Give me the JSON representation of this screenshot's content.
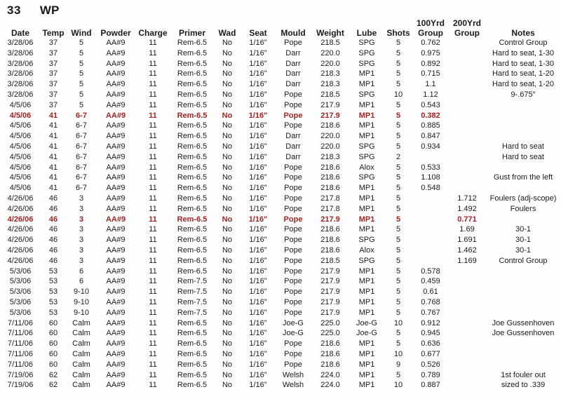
{
  "header": {
    "number": "33",
    "code": "WP"
  },
  "colors": {
    "text": "#1b1b1b",
    "highlight_red": "#a12424",
    "background": "#fdfdfd"
  },
  "table": {
    "columns": [
      {
        "key": "date",
        "label": "Date"
      },
      {
        "key": "temp",
        "label": "Temp"
      },
      {
        "key": "wind",
        "label": "Wind"
      },
      {
        "key": "powder",
        "label": "Powder"
      },
      {
        "key": "charge",
        "label": "Charge"
      },
      {
        "key": "primer",
        "label": "Primer"
      },
      {
        "key": "wad",
        "label": "Wad"
      },
      {
        "key": "seat",
        "label": "Seat"
      },
      {
        "key": "mould",
        "label": "Mould"
      },
      {
        "key": "weight",
        "label": "Weight"
      },
      {
        "key": "lube",
        "label": "Lube"
      },
      {
        "key": "shots",
        "label": "Shots"
      },
      {
        "key": "group100",
        "top": "100Yrd",
        "label": "Group"
      },
      {
        "key": "group200",
        "top": "200Yrd",
        "label": "Group"
      },
      {
        "key": "notes",
        "label": "Notes"
      }
    ],
    "highlight_row_indexes": [
      7,
      17
    ],
    "rows": [
      [
        "3/28/06",
        "37",
        "5",
        "AA#9",
        "11",
        "Rem-6.5",
        "No",
        "1/16\"",
        "Pope",
        "218.5",
        "SPG",
        "5",
        "0.762",
        "",
        "Control Group"
      ],
      [
        "3/28/06",
        "37",
        "5",
        "AA#9",
        "11",
        "Rem-6.5",
        "No",
        "1/16\"",
        "Darr",
        "220.0",
        "SPG",
        "5",
        "0.975",
        "",
        "Hard to seat, 1-30"
      ],
      [
        "3/28/06",
        "37",
        "5",
        "AA#9",
        "11",
        "Rem-6.5",
        "No",
        "1/16\"",
        "Darr",
        "220.0",
        "SPG",
        "5",
        "0.892",
        "",
        "Hard to seat, 1-30"
      ],
      [
        "3/28/06",
        "37",
        "5",
        "AA#9",
        "11",
        "Rem-6.5",
        "No",
        "1/16\"",
        "Darr",
        "218.3",
        "MP1",
        "5",
        "0.715",
        "",
        "Hard to seat, 1-20"
      ],
      [
        "3/28/06",
        "37",
        "5",
        "AA#9",
        "11",
        "Rem-6.5",
        "No",
        "1/16\"",
        "Darr",
        "218.3",
        "MP1",
        "5",
        "1.1",
        "",
        "Hard to seat, 1-20"
      ],
      [
        "3/28/06",
        "37",
        "5",
        "AA#9",
        "11",
        "Rem-6.5",
        "No",
        "1/16\"",
        "Pope",
        "218.5",
        "SPG",
        "10",
        "1.12",
        "",
        "9-.675\""
      ],
      [
        "4/5/06",
        "37",
        "5",
        "AA#9",
        "11",
        "Rem-6.5",
        "No",
        "1/16\"",
        "Pope",
        "217.9",
        "MP1",
        "5",
        "0.543",
        "",
        ""
      ],
      [
        "4/5/06",
        "41",
        "6-7",
        "AA#9",
        "11",
        "Rem-6.5",
        "No",
        "1/16\"",
        "Pope",
        "217.9",
        "MP1",
        "5",
        "0.382",
        "",
        ""
      ],
      [
        "4/5/06",
        "41",
        "6-7",
        "AA#9",
        "11",
        "Rem-6.5",
        "No",
        "1/16\"",
        "Pope",
        "218.6",
        "MP1",
        "5",
        "0.885",
        "",
        ""
      ],
      [
        "4/5/06",
        "41",
        "6-7",
        "AA#9",
        "11",
        "Rem-6.5",
        "No",
        "1/16\"",
        "Darr",
        "220.0",
        "MP1",
        "5",
        "0.847",
        "",
        ""
      ],
      [
        "4/5/06",
        "41",
        "6-7",
        "AA#9",
        "11",
        "Rem-6.5",
        "No",
        "1/16\"",
        "Darr",
        "220.0",
        "SPG",
        "5",
        "0.934",
        "",
        "Hard to seat"
      ],
      [
        "4/5/06",
        "41",
        "6-7",
        "AA#9",
        "11",
        "Rem-6.5",
        "No",
        "1/16\"",
        "Darr",
        "218.3",
        "SPG",
        "2",
        "",
        "",
        "Hard to seat"
      ],
      [
        "4/5/06",
        "41",
        "6-7",
        "AA#9",
        "11",
        "Rem-6.5",
        "No",
        "1/16\"",
        "Pope",
        "218.6",
        "Alox",
        "5",
        "0.533",
        "",
        ""
      ],
      [
        "4/5/06",
        "41",
        "6-7",
        "AA#9",
        "11",
        "Rem-6.5",
        "No",
        "1/16\"",
        "Pope",
        "218.6",
        "SPG",
        "5",
        "1.108",
        "",
        "Gust from the left"
      ],
      [
        "4/5/06",
        "41",
        "6-7",
        "AA#9",
        "11",
        "Rem-6.5",
        "No",
        "1/16\"",
        "Pope",
        "218.6",
        "MP1",
        "5",
        "0.548",
        "",
        ""
      ],
      [
        "4/26/06",
        "46",
        "3",
        "AA#9",
        "11",
        "Rem-6.5",
        "No",
        "1/16\"",
        "Pope",
        "217.8",
        "MP1",
        "5",
        "",
        "1.712",
        "Foulers (adj-scope)"
      ],
      [
        "4/26/06",
        "46",
        "3",
        "AA#9",
        "11",
        "Rem-6.5",
        "No",
        "1/16\"",
        "Pope",
        "217.8",
        "MP1",
        "5",
        "",
        "1.492",
        "Foulers"
      ],
      [
        "4/26/06",
        "46",
        "3",
        "AA#9",
        "11",
        "Rem-6.5",
        "No",
        "1/16\"",
        "Pope",
        "217.9",
        "MP1",
        "5",
        "",
        "0.771",
        ""
      ],
      [
        "4/26/06",
        "46",
        "3",
        "AA#9",
        "11",
        "Rem-6.5",
        "No",
        "1/16\"",
        "Pope",
        "218.6",
        "MP1",
        "5",
        "",
        "1.69",
        "30-1"
      ],
      [
        "4/26/06",
        "46",
        "3",
        "AA#9",
        "11",
        "Rem-6.5",
        "No",
        "1/16\"",
        "Pope",
        "218.6",
        "SPG",
        "5",
        "",
        "1.691",
        "30-1"
      ],
      [
        "4/26/06",
        "46",
        "3",
        "AA#9",
        "11",
        "Rem-6.5",
        "No",
        "1/16\"",
        "Pope",
        "218.6",
        "Alox",
        "5",
        "",
        "1.462",
        "30-1"
      ],
      [
        "4/26/06",
        "46",
        "3",
        "AA#9",
        "11",
        "Rem-6.5",
        "No",
        "1/16\"",
        "Pope",
        "218.5",
        "SPG",
        "5",
        "",
        "1.169",
        "Control Group"
      ],
      [
        "5/3/06",
        "53",
        "6",
        "AA#9",
        "11",
        "Rem-6.5",
        "No",
        "1/16\"",
        "Pope",
        "217.9",
        "MP1",
        "5",
        "0.578",
        "",
        ""
      ],
      [
        "5/3/06",
        "53",
        "6",
        "AA#9",
        "11",
        "Rem-7.5",
        "No",
        "1/16\"",
        "Pope",
        "217.9",
        "MP1",
        "5",
        "0.459",
        "",
        ""
      ],
      [
        "5/3/06",
        "53",
        "9-10",
        "AA#9",
        "11",
        "Rem-7.5",
        "No",
        "1/16\"",
        "Pope",
        "217.9",
        "MP1",
        "5",
        "0.61",
        "",
        ""
      ],
      [
        "5/3/06",
        "53",
        "9-10",
        "AA#9",
        "11",
        "Rem-7.5",
        "No",
        "1/16\"",
        "Pope",
        "217.9",
        "MP1",
        "5",
        "0.768",
        "",
        ""
      ],
      [
        "5/3/06",
        "53",
        "9-10",
        "AA#9",
        "11",
        "Rem-7.5",
        "No",
        "1/16\"",
        "Pope",
        "217.9",
        "MP1",
        "5",
        "0.767",
        "",
        ""
      ],
      [
        "7/11/06",
        "60",
        "Calm",
        "AA#9",
        "11",
        "Rem-6.5",
        "No",
        "1/16\"",
        "Joe-G",
        "225.0",
        "Joe-G",
        "10",
        "0.912",
        "",
        "Joe Gussenhoven"
      ],
      [
        "7/11/06",
        "60",
        "Calm",
        "AA#9",
        "11",
        "Rem-6.5",
        "No",
        "1/16\"",
        "Joe-G",
        "225.0",
        "Joe-G",
        "5",
        "0.945",
        "",
        "Joe Gussenhoven"
      ],
      [
        "7/11/06",
        "60",
        "Calm",
        "AA#9",
        "11",
        "Rem-6.5",
        "No",
        "1/16\"",
        "Pope",
        "218.6",
        "MP1",
        "5",
        "0.636",
        "",
        ""
      ],
      [
        "7/11/06",
        "60",
        "Calm",
        "AA#9",
        "11",
        "Rem-6.5",
        "No",
        "1/16\"",
        "Pope",
        "218.6",
        "MP1",
        "10",
        "0.677",
        "",
        ""
      ],
      [
        "7/11/06",
        "60",
        "Calm",
        "AA#9",
        "11",
        "Rem-6.5",
        "No",
        "1/16\"",
        "Pope",
        "218.6",
        "MP1",
        "9",
        "0.526",
        "",
        ""
      ],
      [
        "7/19/06",
        "62",
        "Calm",
        "AA#9",
        "11",
        "Rem-6.5",
        "No",
        "1/16\"",
        "Welsh",
        "224.0",
        "MP1",
        "5",
        "0.789",
        "",
        "1st fouler out"
      ],
      [
        "7/19/06",
        "62",
        "Calm",
        "AA#9",
        "11",
        "Rem-6.5",
        "No",
        "1/16\"",
        "Welsh",
        "224.0",
        "MP1",
        "10",
        "0.887",
        "",
        "sized to .339"
      ]
    ]
  }
}
